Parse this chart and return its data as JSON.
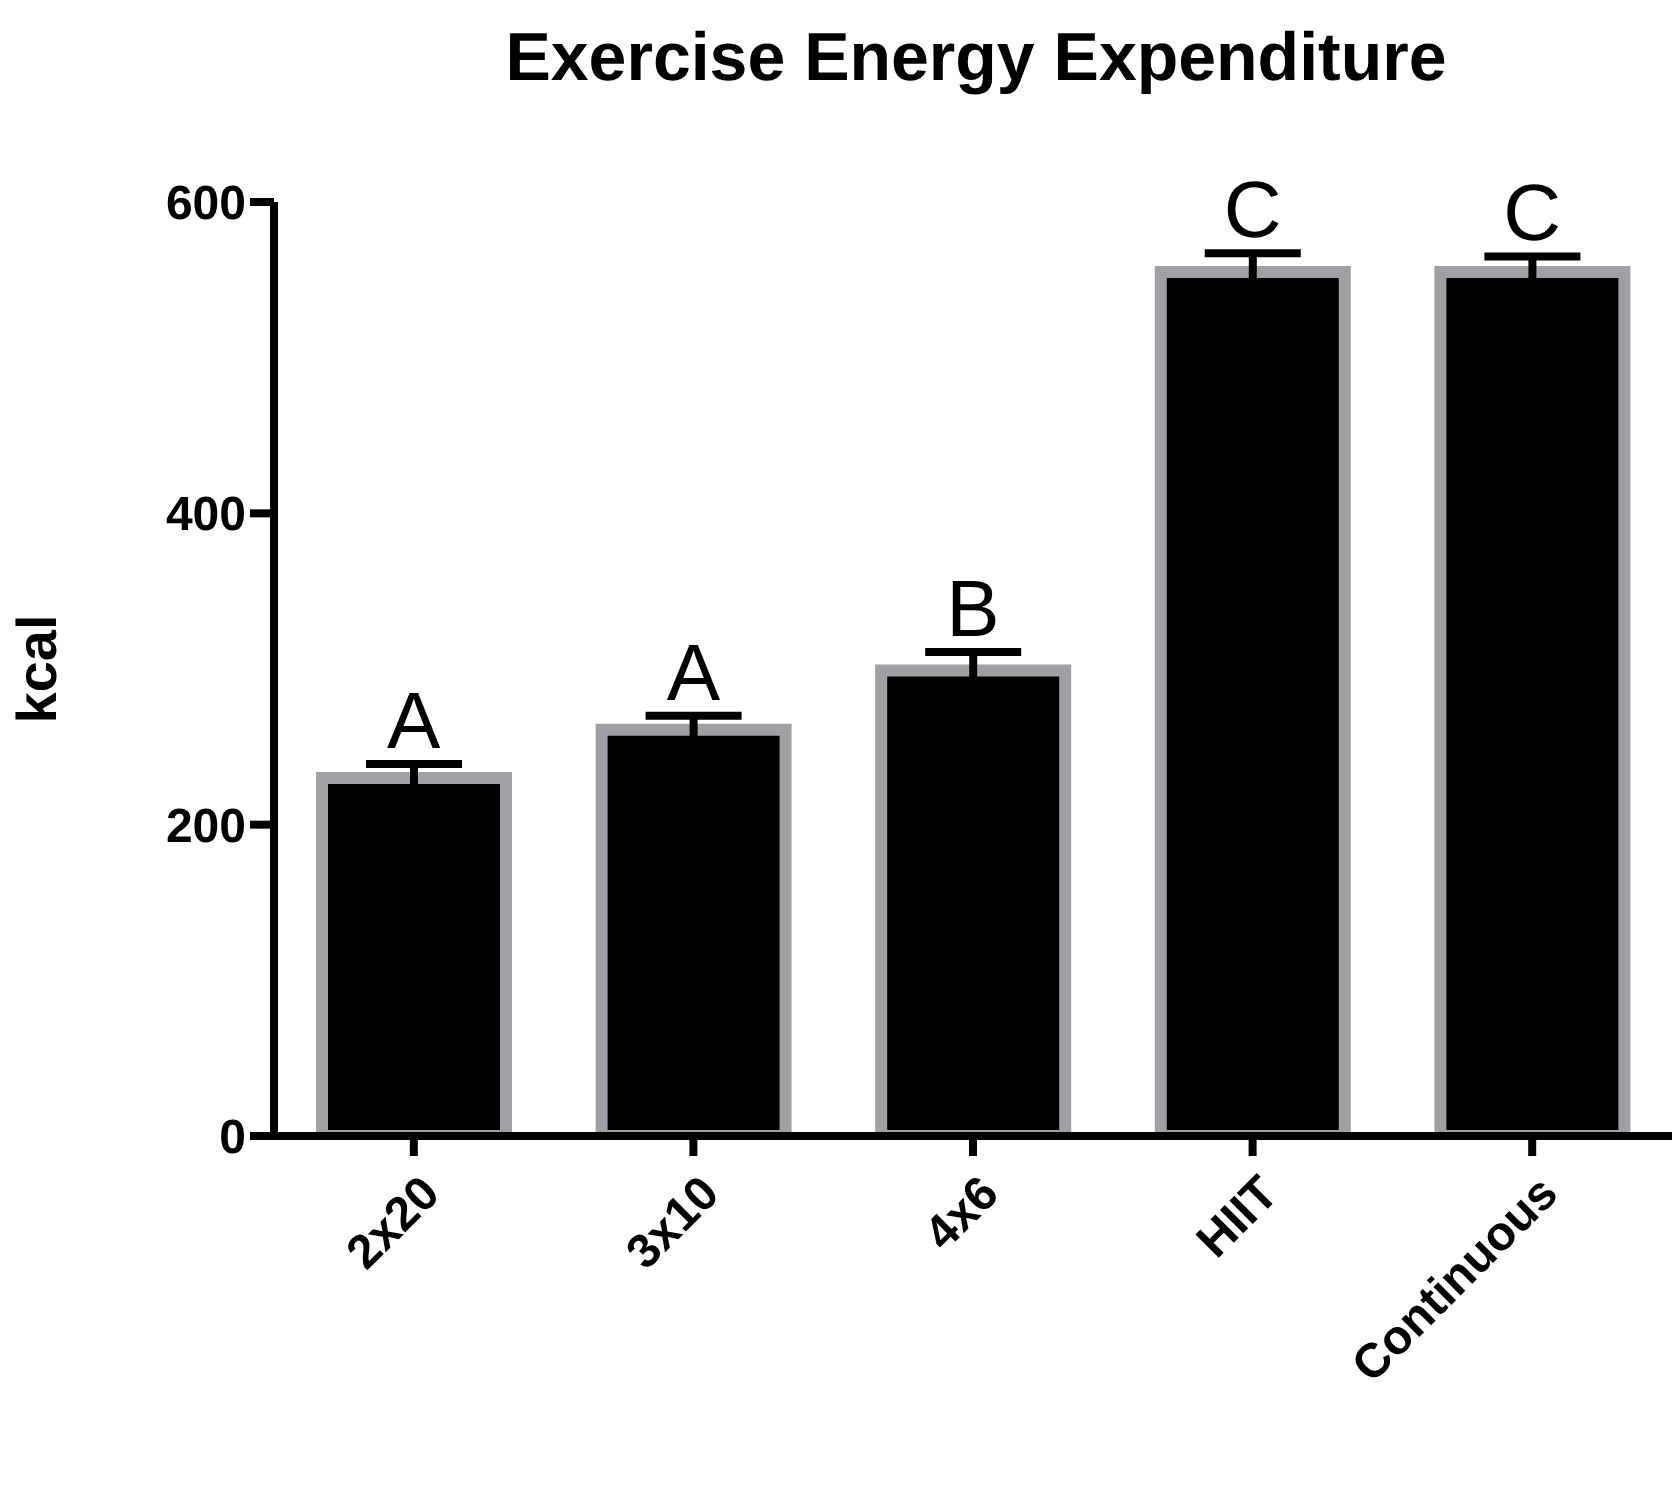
{
  "chart_data": {
    "type": "bar",
    "title": "Exercise Energy Expenditure",
    "ylabel": "kcal",
    "categories": [
      "2x20",
      "3x10",
      "4x6",
      "HIIT",
      "Continuous"
    ],
    "values": [
      230,
      261,
      299,
      555,
      555
    ],
    "errors": [
      9,
      9,
      12,
      12,
      10
    ],
    "color": "#000000",
    "ylim": [
      0,
      600
    ],
    "yticks": [
      0,
      200,
      400,
      600
    ],
    "grid": false,
    "legend": false,
    "annotations": [
      {
        "text": "A",
        "x": "2x20",
        "y": 239
      },
      {
        "text": "A",
        "x": "3x10",
        "y": 270
      },
      {
        "text": "B",
        "x": "4x6",
        "y": 311
      },
      {
        "text": "C",
        "x": "HIIT",
        "y": 567
      },
      {
        "text": "C",
        "x": "Continuous",
        "y": 565
      }
    ]
  }
}
